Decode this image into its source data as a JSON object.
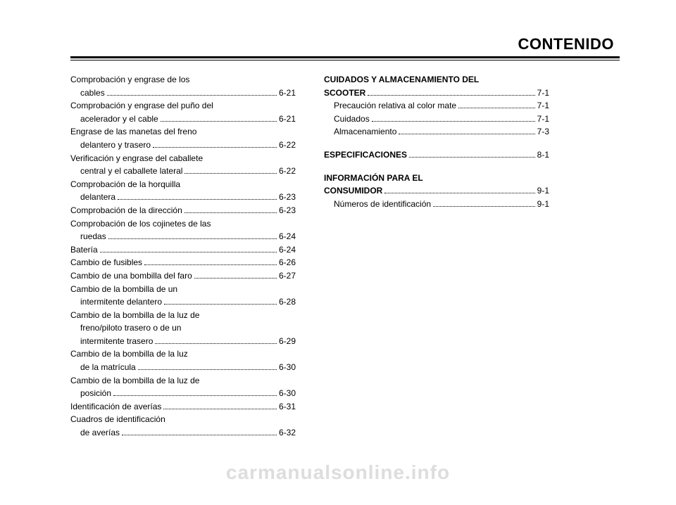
{
  "header": {
    "title": "CONTENIDO"
  },
  "watermark": "carmanualsonline.info",
  "left_col": [
    {
      "text": "Comprobación y engrase de los",
      "page": "",
      "indent": false,
      "cont": true
    },
    {
      "text": "cables",
      "page": "6-21",
      "indent": true
    },
    {
      "text": "Comprobación y engrase del puño del",
      "page": "",
      "indent": false,
      "cont": true
    },
    {
      "text": "acelerador y el cable",
      "page": "6-21",
      "indent": true
    },
    {
      "text": "Engrase de las manetas del freno",
      "page": "",
      "indent": false,
      "cont": true
    },
    {
      "text": "delantero y trasero",
      "page": "6-22",
      "indent": true
    },
    {
      "text": "Verificación y engrase del caballete",
      "page": "",
      "indent": false,
      "cont": true
    },
    {
      "text": "central y el caballete lateral",
      "page": "6-22",
      "indent": true
    },
    {
      "text": "Comprobación de la horquilla",
      "page": "",
      "indent": false,
      "cont": true
    },
    {
      "text": "delantera",
      "page": "6-23",
      "indent": true
    },
    {
      "text": "Comprobación de la dirección",
      "page": "6-23",
      "indent": false
    },
    {
      "text": "Comprobación de los cojinetes de las",
      "page": "",
      "indent": false,
      "cont": true
    },
    {
      "text": "ruedas",
      "page": "6-24",
      "indent": true
    },
    {
      "text": "Batería",
      "page": "6-24",
      "indent": false
    },
    {
      "text": "Cambio de fusibles",
      "page": "6-26",
      "indent": false
    },
    {
      "text": "Cambio de una bombilla del faro",
      "page": "6-27",
      "indent": false
    },
    {
      "text": "Cambio de la bombilla de un",
      "page": "",
      "indent": false,
      "cont": true
    },
    {
      "text": "intermitente delantero",
      "page": "6-28",
      "indent": true
    },
    {
      "text": "Cambio de la bombilla de la luz de",
      "page": "",
      "indent": false,
      "cont": true
    },
    {
      "text": "freno/piloto trasero o de un",
      "page": "",
      "indent": true,
      "cont": true
    },
    {
      "text": "intermitente trasero",
      "page": "6-29",
      "indent": true
    },
    {
      "text": "Cambio de la bombilla de la luz",
      "page": "",
      "indent": false,
      "cont": true
    },
    {
      "text": "de la matrícula",
      "page": "6-30",
      "indent": true
    },
    {
      "text": "Cambio de la bombilla de la luz de",
      "page": "",
      "indent": false,
      "cont": true
    },
    {
      "text": "posición",
      "page": "6-30",
      "indent": true
    },
    {
      "text": "Identificación de averías",
      "page": "6-31",
      "indent": false
    },
    {
      "text": "Cuadros de identificación",
      "page": "",
      "indent": false,
      "cont": true
    },
    {
      "text": "de averías",
      "page": "6-32",
      "indent": true
    }
  ],
  "right_col": [
    {
      "text": "CUIDADOS Y ALMACENAMIENTO DEL",
      "page": "",
      "indent": false,
      "bold": true,
      "cont": true
    },
    {
      "text": "SCOOTER",
      "page": "7-1",
      "indent": false,
      "bold": true
    },
    {
      "text": "Precaución relativa al color mate",
      "page": "7-1",
      "indent": true
    },
    {
      "text": "Cuidados",
      "page": "7-1",
      "indent": true
    },
    {
      "text": "Almacenamiento",
      "page": "7-3",
      "indent": true
    },
    {
      "spacer": true
    },
    {
      "text": "ESPECIFICACIONES",
      "page": "8-1",
      "indent": false,
      "bold": true
    },
    {
      "spacer": true
    },
    {
      "text": "INFORMACIÓN PARA EL",
      "page": "",
      "indent": false,
      "bold": true,
      "cont": true
    },
    {
      "text": "CONSUMIDOR",
      "page": "9-1",
      "indent": false,
      "bold": true
    },
    {
      "text": "Números de identificación",
      "page": "9-1",
      "indent": true
    }
  ]
}
